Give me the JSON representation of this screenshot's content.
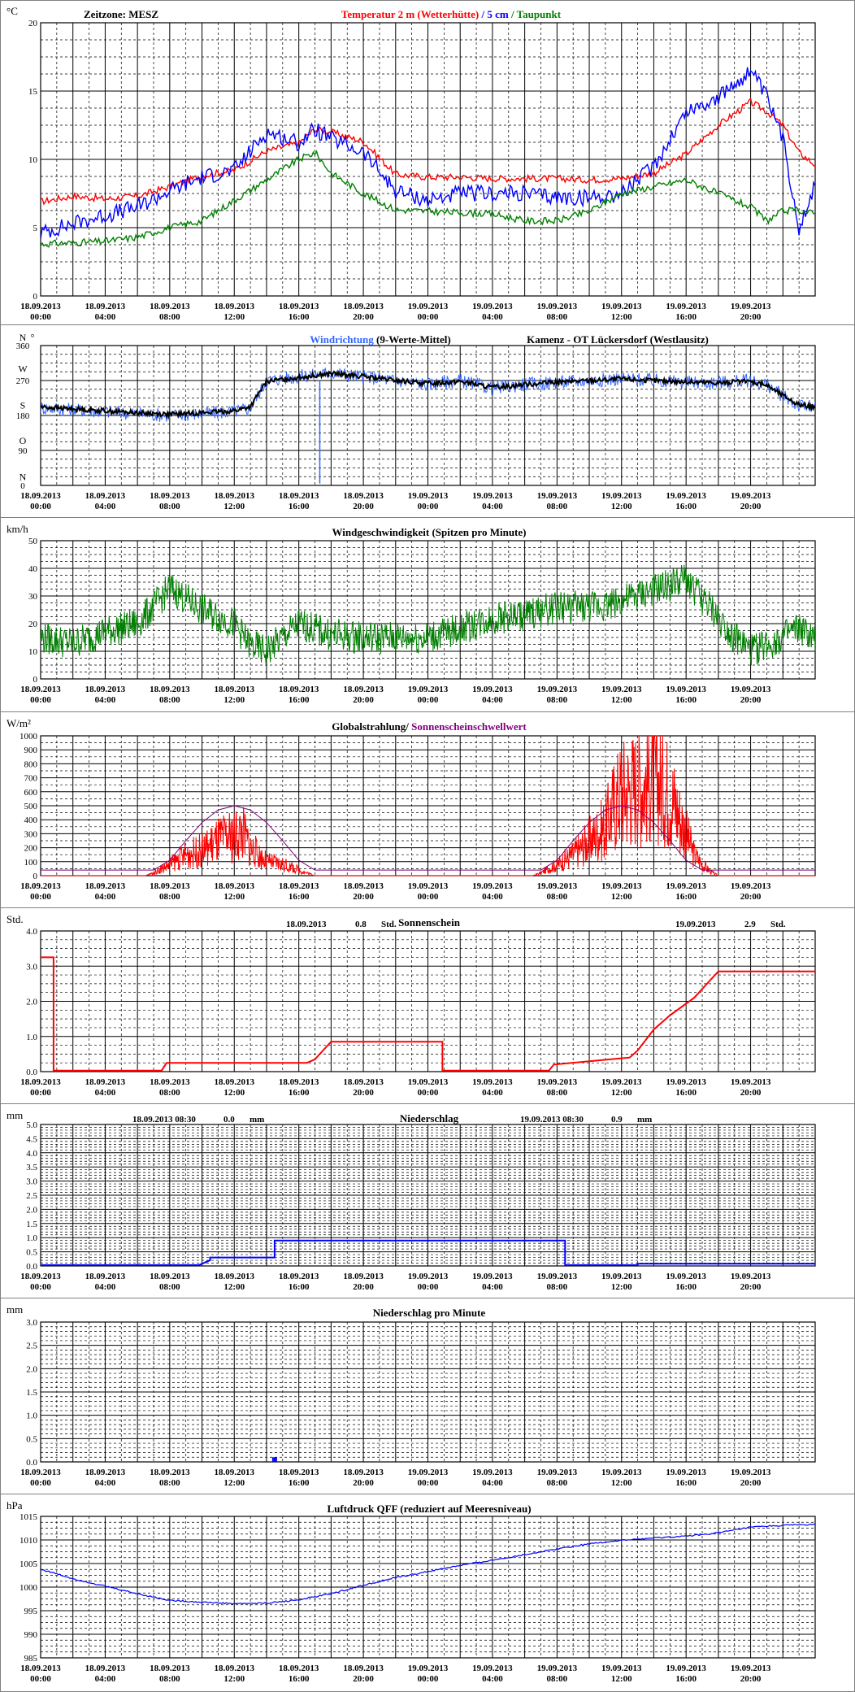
{
  "x_labels": [
    {
      "date": "18.09.2013",
      "time": "00:00"
    },
    {
      "date": "18.09.2013",
      "time": "04:00"
    },
    {
      "date": "18.09.2013",
      "time": "08:00"
    },
    {
      "date": "18.09.2013",
      "time": "12:00"
    },
    {
      "date": "18.09.2013",
      "time": "16:00"
    },
    {
      "date": "18.09.2013",
      "time": "20:00"
    },
    {
      "date": "19.09.2013",
      "time": "00:00"
    },
    {
      "date": "19.09.2013",
      "time": "04:00"
    },
    {
      "date": "19.09.2013",
      "time": "08:00"
    },
    {
      "date": "19.09.2013",
      "time": "12:00"
    },
    {
      "date": "19.09.2013",
      "time": "16:00"
    },
    {
      "date": "19.09.2013",
      "time": "20:00"
    }
  ],
  "chart_data": [
    {
      "id": "temperature",
      "type": "line",
      "unit": "°C",
      "timezone": "Zeitzone: MESZ",
      "title_parts": [
        {
          "text": "Temperatur 2 m (Wetterhütte)",
          "color": "#ff0000"
        },
        {
          "text": " / ",
          "color": "#0000ff"
        },
        {
          "text": "5 cm",
          "color": "#0000ff"
        },
        {
          "text": " / ",
          "color": "#008000"
        },
        {
          "text": "Taupunkt",
          "color": "#008000"
        }
      ],
      "ylim": [
        0,
        20
      ],
      "yticks": [
        0,
        5,
        10,
        15,
        20
      ],
      "grid": true,
      "x_hours": [
        0,
        2,
        4,
        6,
        8,
        10,
        12,
        14,
        16,
        17,
        18,
        20,
        22,
        24,
        26,
        28,
        30,
        32,
        34,
        36,
        38,
        40,
        42,
        44,
        45,
        46,
        47,
        48
      ],
      "series": [
        {
          "name": "Temperatur 2 m (Wetterhütte)",
          "color": "#ff0000",
          "values": [
            6.9,
            7.3,
            7.1,
            7.3,
            8.0,
            8.8,
            9.2,
            10.6,
            11.2,
            12.2,
            12.0,
            11.3,
            8.9,
            8.7,
            8.7,
            8.6,
            8.6,
            8.6,
            8.5,
            8.6,
            9.0,
            10.4,
            12.5,
            14.2,
            13.5,
            12.5,
            10.5,
            9.6
          ]
        },
        {
          "name": "5 cm",
          "color": "#0000ff",
          "values": [
            4.6,
            5.3,
            5.9,
            6.5,
            7.7,
            8.7,
            9.2,
            12.0,
            11.2,
            12.2,
            11.5,
            10.5,
            7.7,
            7.0,
            7.5,
            7.5,
            7.5,
            7.2,
            7.2,
            7.5,
            9.5,
            13.5,
            14.5,
            16.5,
            14.5,
            11.5,
            5.0,
            8.2
          ]
        },
        {
          "name": "Taupunkt",
          "color": "#008000",
          "values": [
            3.8,
            3.9,
            4.0,
            4.3,
            5.0,
            5.5,
            7.0,
            8.5,
            10.0,
            10.5,
            9.0,
            7.5,
            6.3,
            6.2,
            6.1,
            6.0,
            5.5,
            5.5,
            6.2,
            7.5,
            8.0,
            8.5,
            7.5,
            6.5,
            5.5,
            6.2,
            6.3,
            6.0
          ]
        }
      ]
    },
    {
      "id": "wind-direction",
      "type": "line",
      "title_parts": [
        {
          "text": "Windrichtung",
          "color": "#3366ff"
        },
        {
          "text": " (9-Werte-Mittel)",
          "color": "#000000"
        }
      ],
      "location": "Kamenz - OT Lückersdorf (Westlausitz)",
      "ylim": [
        0,
        360
      ],
      "yticks": [
        0,
        90,
        180,
        270,
        360
      ],
      "compass_labels": [
        {
          "text": "N",
          "value": 360
        },
        {
          "text": "°",
          "value": 360
        },
        {
          "text": "W",
          "value": 300
        },
        {
          "text": "S",
          "value": 206
        },
        {
          "text": "O",
          "value": 115
        },
        {
          "text": "N",
          "value": 22
        }
      ],
      "grid": true,
      "x_hours": [
        0,
        2,
        4,
        6,
        8,
        10,
        12,
        13,
        14,
        16,
        18,
        20,
        22,
        24,
        26,
        28,
        30,
        32,
        34,
        36,
        38,
        40,
        42,
        44,
        45,
        46,
        47,
        48
      ],
      "series": [
        {
          "name": "Windrichtung",
          "color": "#3366ff",
          "values": [
            200,
            195,
            190,
            185,
            180,
            185,
            190,
            200,
            270,
            280,
            290,
            280,
            270,
            260,
            270,
            250,
            260,
            265,
            270,
            275,
            270,
            265,
            265,
            270,
            260,
            230,
            205,
            200
          ]
        },
        {
          "name": "9-Werte-Mittel",
          "color": "#000000",
          "values": [
            202,
            197,
            192,
            187,
            183,
            187,
            192,
            202,
            268,
            278,
            288,
            280,
            270,
            262,
            268,
            252,
            260,
            266,
            270,
            274,
            270,
            266,
            264,
            268,
            258,
            232,
            208,
            202
          ]
        }
      ],
      "spike": {
        "hour": 17.3,
        "low": 5
      }
    },
    {
      "id": "wind-speed",
      "type": "line",
      "unit": "km/h",
      "title_parts": [
        {
          "text": "Windgeschwindigkeit (Spitzen pro Minute)",
          "color": "#000000"
        }
      ],
      "ylim": [
        0,
        50
      ],
      "yticks": [
        0,
        10,
        20,
        30,
        40,
        50
      ],
      "grid": true,
      "x_hours": [
        0,
        2,
        4,
        6,
        7,
        8,
        10,
        12,
        13,
        14,
        16,
        18,
        20,
        22,
        24,
        26,
        28,
        30,
        32,
        34,
        36,
        38,
        40,
        42,
        43,
        44,
        46,
        47,
        48
      ],
      "series": [
        {
          "name": "Windgeschwindigkeit",
          "color": "#008000",
          "values": [
            15,
            13,
            17,
            20,
            26,
            33,
            25,
            20,
            12,
            10,
            20,
            16,
            15,
            15,
            15,
            18,
            22,
            23,
            26,
            26,
            28,
            32,
            36,
            22,
            15,
            10,
            15,
            18,
            14
          ]
        }
      ]
    },
    {
      "id": "radiation",
      "type": "line",
      "unit": "W/m²",
      "title_parts": [
        {
          "text": "Globalstrahlung",
          "color": "#000000"
        },
        {
          "text": "/ ",
          "color": "#000000"
        },
        {
          "text": "Sonnenscheinschwellwert",
          "color": "#800080"
        }
      ],
      "ylim": [
        0,
        1000
      ],
      "yticks": [
        0,
        100,
        200,
        300,
        400,
        500,
        600,
        700,
        800,
        900,
        1000
      ],
      "grid": true,
      "series": [
        {
          "name": "Globalstrahlung",
          "color": "#ff0000",
          "x_hours": [
            0,
            6.5,
            7,
            8,
            9,
            10,
            11,
            12,
            12.5,
            13,
            14,
            15,
            16,
            16.5,
            17,
            24,
            30.5,
            31,
            32,
            33,
            34,
            35,
            35.5,
            36,
            37,
            38,
            39,
            39.5,
            40,
            40.5,
            41,
            41.5,
            42,
            48
          ],
          "values": [
            0,
            0,
            20,
            80,
            150,
            180,
            250,
            280,
            320,
            200,
            100,
            80,
            40,
            20,
            0,
            0,
            0,
            20,
            80,
            150,
            250,
            350,
            500,
            600,
            650,
            700,
            600,
            450,
            300,
            150,
            80,
            30,
            0,
            0
          ]
        },
        {
          "name": "Sonnenscheinschwellwert",
          "color": "#800080",
          "x_hours": [
            0,
            7,
            8,
            9,
            10,
            11,
            12,
            13,
            14,
            15,
            16,
            17,
            18,
            24,
            31,
            32,
            33,
            34,
            35,
            36,
            37,
            38,
            39,
            40,
            41,
            42,
            48
          ],
          "values": [
            40,
            40,
            110,
            250,
            380,
            470,
            500,
            470,
            380,
            250,
            110,
            40,
            40,
            40,
            40,
            110,
            250,
            380,
            470,
            500,
            470,
            380,
            250,
            110,
            40,
            40,
            40
          ]
        }
      ]
    },
    {
      "id": "sunshine",
      "type": "line",
      "unit": "Std.",
      "title_parts": [
        {
          "text": "Sonnenschein",
          "color": "#000000"
        }
      ],
      "summaries": [
        {
          "date": "18.09.2013",
          "value": "0.8",
          "unit": "Std."
        },
        {
          "date": "19.09.2013",
          "value": "2.9",
          "unit": "Std."
        }
      ],
      "ylim": [
        0,
        4
      ],
      "yticks": [
        0.0,
        1.0,
        2.0,
        3.0,
        4.0
      ],
      "yticklabels": [
        "0.0",
        "1.0",
        "2.0",
        "3.0",
        "4.0"
      ],
      "grid": true,
      "x_hours": [
        0,
        0.8,
        0.8,
        7.5,
        7.8,
        16.5,
        17.0,
        17.5,
        18.0,
        24.9,
        24.9,
        31.5,
        31.8,
        36.5,
        37.0,
        38.0,
        39.0,
        40.5,
        41.5,
        42.0,
        48
      ],
      "series": [
        {
          "name": "Sonnenschein",
          "color": "#ff0000",
          "values": [
            3.25,
            3.25,
            0.03,
            0.03,
            0.25,
            0.25,
            0.35,
            0.6,
            0.85,
            0.85,
            0.03,
            0.03,
            0.2,
            0.4,
            0.6,
            1.2,
            1.6,
            2.1,
            2.6,
            2.85,
            2.85
          ]
        }
      ]
    },
    {
      "id": "precipitation",
      "type": "line",
      "unit": "mm",
      "title_parts": [
        {
          "text": "Niederschlag",
          "color": "#000000"
        }
      ],
      "summaries": [
        {
          "date": "18.09.2013 08:30",
          "value": "0.0",
          "unit": "mm"
        },
        {
          "date": "19.09.2013 08:30",
          "value": "0.9",
          "unit": "mm"
        }
      ],
      "ylim": [
        0,
        5
      ],
      "yticks": [
        0.0,
        0.5,
        1.0,
        1.5,
        2.0,
        2.5,
        3.0,
        3.5,
        4.0,
        4.5,
        5.0
      ],
      "yticklabels": [
        "0.0",
        "0.5",
        "1.0",
        "1.5",
        "2.0",
        "2.5",
        "3.0",
        "3.5",
        "4.0",
        "4.5",
        "5.0"
      ],
      "grid": true,
      "x_hours": [
        0,
        9.8,
        10.5,
        10.5,
        14.5,
        14.5,
        32.4,
        32.5,
        32.5,
        37.0,
        37.0,
        48
      ],
      "series": [
        {
          "name": "Niederschlag",
          "color": "#0000ff",
          "values": [
            0.03,
            0.03,
            0.2,
            0.3,
            0.3,
            0.9,
            0.9,
            0.9,
            0.03,
            0.03,
            0.08,
            0.08
          ]
        }
      ]
    },
    {
      "id": "precipitation-per-minute",
      "type": "bar",
      "unit": "mm",
      "title_parts": [
        {
          "text": "Niederschlag pro Minute",
          "color": "#000000"
        }
      ],
      "ylim": [
        0,
        3
      ],
      "yticks": [
        0.0,
        0.5,
        1.0,
        1.5,
        2.0,
        2.5,
        3.0
      ],
      "yticklabels": [
        "0.0",
        "0.5",
        "1.0",
        "1.5",
        "2.0",
        "2.5",
        "3.0"
      ],
      "grid": true,
      "series": [
        {
          "name": "Niederschlag pro Minute",
          "color": "#0000ff",
          "x_hours": [
            14.4,
            14.5,
            14.6
          ],
          "values": [
            0.1,
            0.1,
            0.1
          ]
        }
      ]
    },
    {
      "id": "pressure",
      "type": "line",
      "unit": "hPa",
      "title_parts": [
        {
          "text": "Luftdruck QFF (reduziert auf Meeresniveau)",
          "color": "#000000"
        }
      ],
      "ylim": [
        985,
        1015
      ],
      "yticks": [
        985,
        990,
        995,
        1000,
        1005,
        1010,
        1015
      ],
      "grid": true,
      "x_hours": [
        0,
        2,
        4,
        6,
        8,
        10,
        12,
        14,
        16,
        18,
        20,
        22,
        24,
        26,
        28,
        30,
        32,
        34,
        36,
        38,
        40,
        42,
        44,
        46,
        48
      ],
      "series": [
        {
          "name": "Luftdruck QFF",
          "color": "#0000ff",
          "values": [
            1003.8,
            1001.8,
            1000.2,
            998.6,
            997.2,
            996.8,
            996.5,
            996.6,
            997.3,
            998.6,
            1000.4,
            1002.0,
            1003.3,
            1004.6,
            1005.7,
            1006.9,
            1008.1,
            1009.2,
            1009.9,
            1010.4,
            1010.8,
            1011.5,
            1012.7,
            1013.1,
            1013.3
          ]
        }
      ]
    }
  ]
}
